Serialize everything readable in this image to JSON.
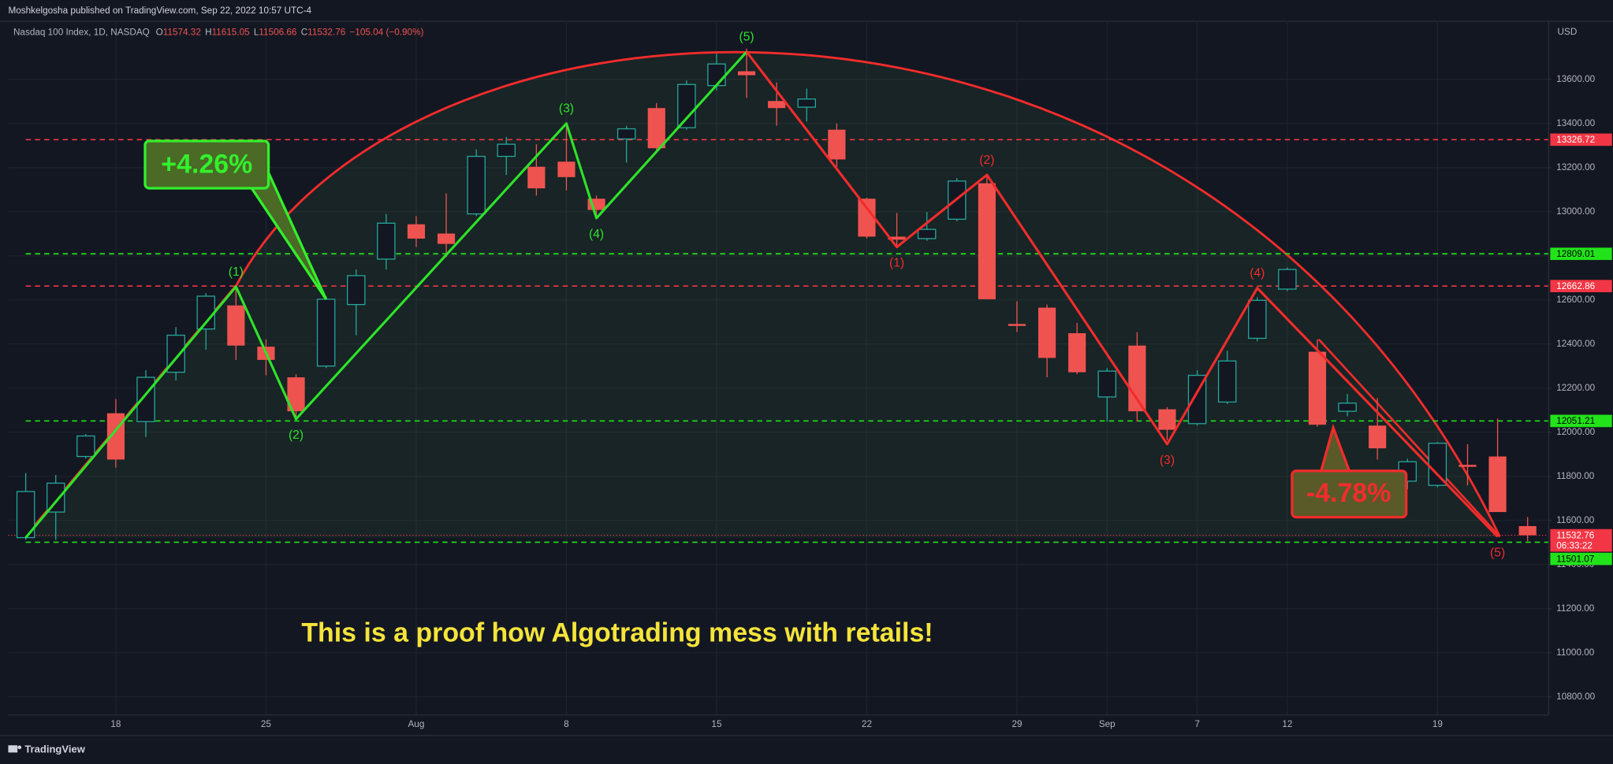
{
  "header": {
    "publisher": "Moshkelgosha published on TradingView.com, Sep 22, 2022 10:57 UTC-4",
    "footer_logo": "TradingView"
  },
  "chart_data": {
    "type": "candlestick",
    "symbol": "Nasdaq 100 Index, 1D, NASDAQ",
    "legend_ohlc": [
      {
        "label": "O",
        "value": 11574.32
      },
      {
        "label": "H",
        "value": 11615.05
      },
      {
        "label": "L",
        "value": 11506.66
      },
      {
        "label": "C",
        "value": 11532.76
      }
    ],
    "legend_change": "−105.04 (−0.90%)",
    "currency": "USD",
    "categories": [
      null,
      null,
      null,
      "18",
      null,
      null,
      null,
      null,
      "25",
      null,
      null,
      null,
      null,
      "Aug",
      null,
      null,
      null,
      null,
      "8",
      null,
      null,
      null,
      null,
      "15",
      null,
      null,
      null,
      null,
      "22",
      null,
      null,
      null,
      null,
      "29",
      null,
      null,
      "Sep",
      null,
      null,
      "7",
      null,
      null,
      "12",
      null,
      null,
      null,
      null,
      "19",
      null,
      null,
      null
    ],
    "open": [
      11522,
      11638,
      11890,
      12086,
      12048,
      12272,
      12468,
      12575,
      12388,
      12249,
      12300,
      12579,
      12785,
      12943,
      12901,
      12990,
      13251,
      13204,
      13227,
      13059,
      13330,
      13470,
      13381,
      13572,
      13637,
      13502,
      13474,
      13372,
      13059,
      12887,
      12878,
      12966,
      13129,
      12491,
      12565,
      12449,
      12160,
      12393,
      12104,
      12039,
      12137,
      12426,
      12649,
      12365,
      12095,
      12030,
      11778,
      11759,
      11852,
      11890,
      11574.32
    ],
    "high": [
      11815,
      11806,
      11992,
      12151,
      12281,
      12477,
      12631,
      12654,
      12421,
      12263,
      12617,
      12738,
      12990,
      12980,
      13083,
      13283,
      13339,
      13306,
      13400,
      13073,
      13390,
      13493,
      13595,
      13717,
      13740,
      13586,
      13558,
      13400,
      13064,
      12994,
      12999,
      13153,
      13167,
      12594,
      12579,
      12496,
      12291,
      12454,
      12114,
      12281,
      12370,
      12612,
      12747,
      12421,
      12174,
      12155,
      11880,
      11955,
      11946,
      12062,
      11615.05
    ],
    "low": [
      11512,
      11512,
      11880,
      11839,
      11978,
      12235,
      12374,
      12328,
      12258,
      12072,
      12291,
      12440,
      12738,
      12840,
      12794,
      12980,
      13167,
      13073,
      13097,
      12971,
      13223,
      13269,
      13372,
      13549,
      13516,
      13390,
      13409,
      13204,
      12878,
      12840,
      12868,
      12957,
      12603,
      12454,
      12249,
      12263,
      12048,
      12048,
      11964,
      12030,
      12128,
      12412,
      12640,
      12025,
      12072,
      11876,
      11741,
      11750,
      11759,
      11638,
      11506.66
    ],
    "close": [
      11731,
      11769,
      11983,
      11876,
      12249,
      12440,
      12617,
      12393,
      12328,
      12095,
      12603,
      12710,
      12948,
      12878,
      12854,
      13251,
      13306,
      13106,
      13157,
      13008,
      13376,
      13288,
      13577,
      13670,
      13619,
      13470,
      13511,
      13237,
      12887,
      12873,
      12920,
      13139,
      12603,
      12482,
      12337,
      12272,
      12277,
      12095,
      12011,
      12258,
      12323,
      12598,
      12738,
      12034,
      12132,
      11927,
      11866,
      11950,
      11843,
      11638,
      11532.76
    ],
    "up_color": "#26a69a",
    "down_color": "#ef5350",
    "ylim": [
      10720,
      13866
    ],
    "yticks": [
      {
        "value": 10800,
        "label": "10800.00"
      },
      {
        "value": 11000,
        "label": "11000.00"
      },
      {
        "value": 11200,
        "label": "11200.00"
      },
      {
        "value": 11400,
        "label": "11400.00"
      },
      {
        "value": 11600,
        "label": "11600.00"
      },
      {
        "value": 11800,
        "label": "11800.00"
      },
      {
        "value": 12000,
        "label": "12000.00"
      },
      {
        "value": 12200,
        "label": "12200.00"
      },
      {
        "value": 12400,
        "label": "12400.00"
      },
      {
        "value": 12600,
        "label": "12600.00"
      },
      {
        "value": 12800,
        "label": "12800.00"
      },
      {
        "value": 13000,
        "label": "13000.00"
      },
      {
        "value": 13200,
        "label": "13200.00"
      },
      {
        "value": 13400,
        "label": "13400.00"
      },
      {
        "value": 13600,
        "label": "13600.00"
      }
    ],
    "grid": true,
    "levels": [
      {
        "value": 13326.72,
        "color": "#f23645"
      },
      {
        "value": 12809.01,
        "color": "#22e31a"
      },
      {
        "value": 12662.86,
        "color": "#f23645"
      },
      {
        "value": 12051.21,
        "color": "#22e31a"
      },
      {
        "value": 11501.07,
        "color": "#22e31a"
      }
    ],
    "last_price": {
      "value": 11532.76,
      "countdown": "06:33:22",
      "color": "#f23645"
    },
    "waves": [
      {
        "color": "#2ee32a",
        "points": [
          {
            "at": 0,
            "value": 11522
          },
          {
            "at": 7,
            "value": 12660,
            "label": "(1)"
          },
          {
            "at": 9,
            "value": 12060,
            "label": "(2)"
          },
          {
            "at": 18,
            "value": 13400,
            "label": "(3)"
          },
          {
            "at": 19,
            "value": 12971,
            "label": "(4)"
          },
          {
            "at": 24,
            "value": 13725,
            "label": "(5)"
          }
        ]
      },
      {
        "color": "#f22c2c",
        "points": [
          {
            "at": 24,
            "value": 13725
          },
          {
            "at": 29,
            "value": 12840,
            "label": "(1)"
          },
          {
            "at": 32,
            "value": 13167,
            "label": "(2)"
          },
          {
            "at": 38,
            "value": 11946,
            "label": "(3)"
          },
          {
            "at": 41,
            "value": 12654,
            "label": "(4)"
          },
          {
            "at": 49,
            "value": 11526,
            "label": "(5)"
          }
        ]
      }
    ],
    "annotations": [
      {
        "text": "+4.26%",
        "color": "#33f02c",
        "fill": "#4a6a26"
      },
      {
        "text": "-4.78%",
        "color": "#f22c2c",
        "fill": "#5a5a28"
      }
    ],
    "caption": "This is a proof how Algotrading mess with retails!"
  }
}
